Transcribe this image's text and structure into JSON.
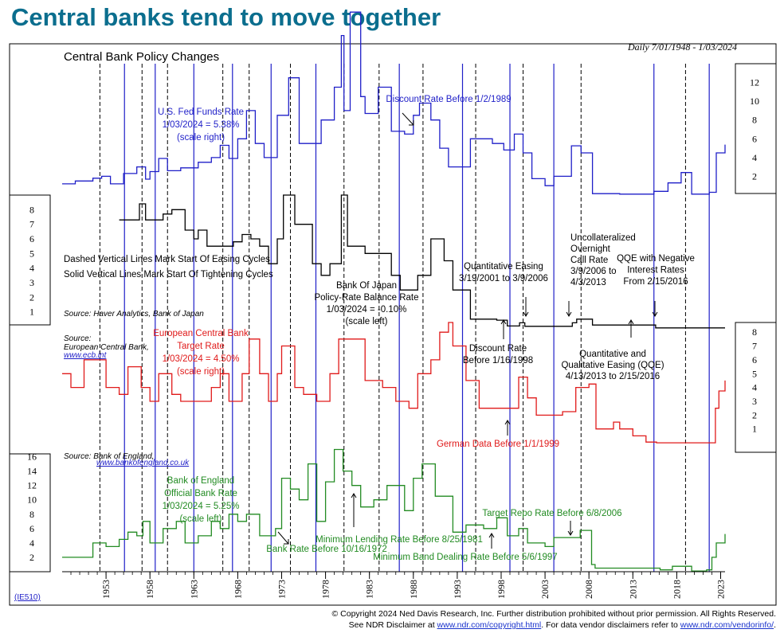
{
  "page_title": "Central banks tend to move together",
  "chart_data": {
    "type": "line",
    "title": "Central Bank Policy Changes",
    "date_range": "Daily 7/01/1948 - 1/03/2024",
    "code": "(IE510)",
    "x_range": [
      1948.5,
      2024.0
    ],
    "x_ticks": [
      1953,
      1958,
      1963,
      1968,
      1973,
      1978,
      1983,
      1988,
      1993,
      1998,
      2003,
      2008,
      2013,
      2018,
      2023
    ],
    "legend_notes": [
      "Dashed Vertical Lines Mark Start Of Easing Cycles",
      "Solid Vertical Lines Mark Start Of Tightening Cycles"
    ],
    "easing_cycle_starts": [
      1952.8,
      1957.6,
      1960.5,
      1966.8,
      1969.8,
      1974.5,
      1980.6,
      1984.6,
      1989.6,
      1995.6,
      2001.0,
      2007.6,
      2019.5
    ],
    "tightening_cycle_starts": [
      1955.6,
      1959.1,
      1963.5,
      1967.9,
      1972.3,
      1977.4,
      1986.9,
      1994.1,
      1999.5,
      2004.5,
      2015.9,
      2022.2
    ],
    "panels": [
      {
        "id": "fed",
        "series_label": [
          "U.S. Fed Funds Rate",
          "1/03/2024 = 5.38%",
          "(scale right)"
        ],
        "color": "#1f1fc8",
        "axis_side": "right",
        "y_range": [
          0,
          14
        ],
        "y_ticks": [
          2,
          4,
          6,
          8,
          10,
          12
        ],
        "annotations": [
          "Discount Rate Before 1/2/1989"
        ],
        "values": [
          [
            1948.5,
            1.2
          ],
          [
            1950.0,
            1.5
          ],
          [
            1952.0,
            1.8
          ],
          [
            1953.0,
            2.0
          ],
          [
            1954.0,
            1.2
          ],
          [
            1955.5,
            2.3
          ],
          [
            1957.0,
            3.0
          ],
          [
            1958.0,
            1.7
          ],
          [
            1958.5,
            2.5
          ],
          [
            1959.5,
            3.9
          ],
          [
            1960.5,
            2.6
          ],
          [
            1962.0,
            2.9
          ],
          [
            1964.0,
            3.5
          ],
          [
            1965.5,
            4.0
          ],
          [
            1966.5,
            5.3
          ],
          [
            1967.5,
            3.9
          ],
          [
            1968.5,
            6.0
          ],
          [
            1969.5,
            9.0
          ],
          [
            1970.5,
            5.5
          ],
          [
            1971.5,
            4.0
          ],
          [
            1973.0,
            8.5
          ],
          [
            1974.3,
            12.5
          ],
          [
            1975.5,
            5.5
          ],
          [
            1977.0,
            5.5
          ],
          [
            1978.0,
            8.0
          ],
          [
            1979.5,
            11.5
          ],
          [
            1980.3,
            17.0
          ],
          [
            1980.6,
            9.0
          ],
          [
            1981.3,
            19.5
          ],
          [
            1982.5,
            10.5
          ],
          [
            1983.0,
            8.7
          ],
          [
            1984.5,
            11.5
          ],
          [
            1986.0,
            6.8
          ],
          [
            1987.5,
            6.5
          ],
          [
            1988.5,
            8.5
          ],
          [
            1989.2,
            9.8
          ],
          [
            1990.5,
            8.0
          ],
          [
            1991.5,
            5.0
          ],
          [
            1992.5,
            3.0
          ],
          [
            1994.0,
            3.0
          ],
          [
            1995.0,
            6.0
          ],
          [
            1997.5,
            5.5
          ],
          [
            1998.8,
            4.8
          ],
          [
            2000.0,
            6.5
          ],
          [
            2001.0,
            4.5
          ],
          [
            2002.0,
            1.75
          ],
          [
            2003.5,
            1.0
          ],
          [
            2004.5,
            2.0
          ],
          [
            2006.5,
            5.25
          ],
          [
            2007.6,
            4.5
          ],
          [
            2008.9,
            0.15
          ],
          [
            2012.0,
            0.1
          ],
          [
            2015.9,
            0.4
          ],
          [
            2017.5,
            1.3
          ],
          [
            2019.0,
            2.4
          ],
          [
            2020.2,
            0.1
          ],
          [
            2022.2,
            0.3
          ],
          [
            2023.0,
            4.5
          ],
          [
            2024.0,
            5.38
          ]
        ]
      },
      {
        "id": "boj",
        "series_label": [
          "Bank Of Japan",
          "Policy-Rate Balance Rate",
          "1/03/2024 = -0.10%",
          "(scale left)"
        ],
        "color": "#000000",
        "axis_side": "left",
        "y_range": [
          0,
          9
        ],
        "y_ticks": [
          1,
          2,
          3,
          4,
          5,
          6,
          7,
          8
        ],
        "source": "Source: Haver Analytics, Bank of Japan",
        "annotations": [
          "Quantitative Easing",
          "3/19/2001 to 3/9/2006",
          "Uncollateralized",
          "Overnight",
          "Call Rate",
          "3/9/2006 to",
          "4/3/2013",
          "QQE with Negative",
          "Interest Rates",
          "From 2/15/2016",
          "Discount Rate",
          "Before 1/16/1998",
          "Quantitative and",
          "Qualitative Easing (QQE)",
          "4/13/2013 to 2/15/2016"
        ],
        "values": [
          [
            1955.0,
            7.3
          ],
          [
            1957.0,
            7.3
          ],
          [
            1957.3,
            8.4
          ],
          [
            1958.0,
            7.3
          ],
          [
            1959.0,
            7.3
          ],
          [
            1960.0,
            7.7
          ],
          [
            1961.0,
            8.0
          ],
          [
            1962.5,
            6.6
          ],
          [
            1963.5,
            6.0
          ],
          [
            1964.0,
            6.6
          ],
          [
            1965.0,
            5.5
          ],
          [
            1966.0,
            5.5
          ],
          [
            1967.5,
            5.5
          ],
          [
            1968.0,
            5.8
          ],
          [
            1969.0,
            6.3
          ],
          [
            1970.0,
            6.0
          ],
          [
            1971.0,
            5.5
          ],
          [
            1972.0,
            4.3
          ],
          [
            1973.0,
            6.0
          ],
          [
            1973.7,
            9.0
          ],
          [
            1975.0,
            7.0
          ],
          [
            1977.0,
            4.3
          ],
          [
            1978.0,
            3.5
          ],
          [
            1979.0,
            4.3
          ],
          [
            1980.3,
            9.0
          ],
          [
            1981.0,
            5.5
          ],
          [
            1983.0,
            5.0
          ],
          [
            1986.0,
            3.5
          ],
          [
            1987.0,
            2.5
          ],
          [
            1989.0,
            3.5
          ],
          [
            1990.5,
            6.0
          ],
          [
            1992.0,
            4.5
          ],
          [
            1993.0,
            2.5
          ],
          [
            1995.0,
            0.5
          ],
          [
            1996.0,
            0.5
          ],
          [
            1998.0,
            0.43
          ],
          [
            1999.2,
            0.03
          ],
          [
            2000.6,
            0.25
          ],
          [
            2001.2,
            0.01
          ],
          [
            2006.6,
            0.25
          ],
          [
            2007.1,
            0.5
          ],
          [
            2008.9,
            0.1
          ],
          [
            2016.1,
            -0.1
          ],
          [
            2024.0,
            -0.1
          ]
        ]
      },
      {
        "id": "ecb",
        "series_label": [
          "European Central Bank",
          "Target Rate",
          "1/03/2024 = 4.50%",
          "(scale right)"
        ],
        "color": "#e01a1a",
        "axis_side": "right",
        "y_range": [
          -0.8,
          8.7
        ],
        "y_ticks": [
          1,
          2,
          3,
          4,
          5,
          6,
          7,
          8
        ],
        "source": "Source:",
        "source_lines": [
          "European Central Bank,",
          "www.ecb.int"
        ],
        "annotations": [
          "German Data Before 1/1/1999"
        ],
        "values": [
          [
            1948.5,
            5.0
          ],
          [
            1949.5,
            4.0
          ],
          [
            1951.0,
            6.0
          ],
          [
            1952.8,
            6.0
          ],
          [
            1953.5,
            4.0
          ],
          [
            1955.0,
            3.5
          ],
          [
            1956.0,
            5.5
          ],
          [
            1957.5,
            4.0
          ],
          [
            1958.5,
            3.0
          ],
          [
            1959.5,
            5.0
          ],
          [
            1961.0,
            3.5
          ],
          [
            1962.0,
            3.0
          ],
          [
            1964.5,
            3.0
          ],
          [
            1965.5,
            4.0
          ],
          [
            1966.5,
            5.0
          ],
          [
            1967.5,
            3.0
          ],
          [
            1969.0,
            5.0
          ],
          [
            1969.8,
            7.5
          ],
          [
            1971.0,
            5.0
          ],
          [
            1972.0,
            3.0
          ],
          [
            1973.0,
            5.0
          ],
          [
            1973.5,
            7.0
          ],
          [
            1975.0,
            4.0
          ],
          [
            1976.0,
            3.5
          ],
          [
            1977.5,
            3.0
          ],
          [
            1979.0,
            5.0
          ],
          [
            1980.0,
            7.5
          ],
          [
            1982.0,
            7.5
          ],
          [
            1983.0,
            4.5
          ],
          [
            1985.0,
            4.0
          ],
          [
            1986.5,
            3.0
          ],
          [
            1988.0,
            2.5
          ],
          [
            1989.0,
            5.0
          ],
          [
            1990.5,
            6.0
          ],
          [
            1991.5,
            8.0
          ],
          [
            1992.5,
            8.7
          ],
          [
            1993.0,
            7.0
          ],
          [
            1994.5,
            4.5
          ],
          [
            1996.0,
            2.5
          ],
          [
            1998.0,
            2.5
          ],
          [
            1999.2,
            2.5
          ],
          [
            2000.5,
            4.75
          ],
          [
            2001.5,
            3.25
          ],
          [
            2002.5,
            2.0
          ],
          [
            2005.5,
            2.25
          ],
          [
            2007.0,
            4.0
          ],
          [
            2008.5,
            4.25
          ],
          [
            2009.3,
            1.0
          ],
          [
            2011.3,
            1.5
          ],
          [
            2012.0,
            1.0
          ],
          [
            2013.5,
            0.5
          ],
          [
            2015.0,
            0.05
          ],
          [
            2016.2,
            0.0
          ],
          [
            2022.4,
            0.0
          ],
          [
            2022.9,
            2.5
          ],
          [
            2023.3,
            3.75
          ],
          [
            2024.0,
            4.5
          ]
        ]
      },
      {
        "id": "boe",
        "series_label": [
          "Bank of England",
          "Official Bank Rate",
          "1/03/2024 = 5.25%",
          "(scale left)"
        ],
        "color": "#228b22",
        "axis_side": "left",
        "y_range": [
          0,
          17.5
        ],
        "y_ticks": [
          2,
          4,
          6,
          8,
          10,
          12,
          14,
          16
        ],
        "source": "Source: Bank of England,",
        "source_lines": [
          "www.bankofengland.co.uk"
        ],
        "annotations": [
          "Bank Rate Before 10/16/1972",
          "Minimum Lending Rate Before 8/25/1981",
          "Minimum Band Dealing Rate Before 5/6/1997",
          "Target Repo Rate Before 6/8/2006"
        ],
        "values": [
          [
            1948.5,
            2.0
          ],
          [
            1951.8,
            2.0
          ],
          [
            1952.0,
            4.0
          ],
          [
            1953.5,
            3.5
          ],
          [
            1955.0,
            4.5
          ],
          [
            1956.0,
            5.5
          ],
          [
            1957.0,
            5.0
          ],
          [
            1957.7,
            7.0
          ],
          [
            1958.5,
            4.0
          ],
          [
            1960.0,
            6.0
          ],
          [
            1961.5,
            7.0
          ],
          [
            1962.5,
            4.0
          ],
          [
            1964.0,
            5.0
          ],
          [
            1965.5,
            7.0
          ],
          [
            1966.5,
            6.0
          ],
          [
            1967.5,
            8.0
          ],
          [
            1968.5,
            7.0
          ],
          [
            1969.5,
            8.0
          ],
          [
            1971.0,
            5.0
          ],
          [
            1972.8,
            6.0
          ],
          [
            1973.5,
            13.0
          ],
          [
            1974.5,
            11.5
          ],
          [
            1975.5,
            10.0
          ],
          [
            1976.5,
            15.0
          ],
          [
            1977.5,
            7.0
          ],
          [
            1978.5,
            12.5
          ],
          [
            1979.5,
            17.0
          ],
          [
            1980.5,
            14.0
          ],
          [
            1981.5,
            12.0
          ],
          [
            1982.5,
            9.0
          ],
          [
            1984.0,
            10.0
          ],
          [
            1985.5,
            12.0
          ],
          [
            1987.5,
            8.5
          ],
          [
            1988.5,
            13.0
          ],
          [
            1989.5,
            15.0
          ],
          [
            1991.0,
            10.5
          ],
          [
            1993.0,
            5.5
          ],
          [
            1994.5,
            6.5
          ],
          [
            1996.5,
            6.0
          ],
          [
            1998.0,
            7.5
          ],
          [
            1999.2,
            5.0
          ],
          [
            2000.5,
            6.0
          ],
          [
            2001.5,
            4.0
          ],
          [
            2003.5,
            3.5
          ],
          [
            2004.5,
            4.75
          ],
          [
            2007.5,
            5.75
          ],
          [
            2008.8,
            1.0
          ],
          [
            2009.2,
            0.5
          ],
          [
            2016.6,
            0.25
          ],
          [
            2018.0,
            0.75
          ],
          [
            2020.2,
            0.1
          ],
          [
            2021.9,
            0.25
          ],
          [
            2022.5,
            2.0
          ],
          [
            2023.0,
            4.0
          ],
          [
            2024.0,
            5.25
          ]
        ]
      }
    ]
  },
  "footer": {
    "line1": "© Copyright 2024 Ned Davis Research, Inc.  Further distribution prohibited without prior permission.  All Rights Reserved.",
    "line2_pre": "See NDR Disclaimer at ",
    "link1": "www.ndr.com/copyright.html",
    "line2_mid": ". For data vendor disclaimers refer to ",
    "link2": "www.ndr.com/vendorinfo/",
    "line2_post": "."
  }
}
